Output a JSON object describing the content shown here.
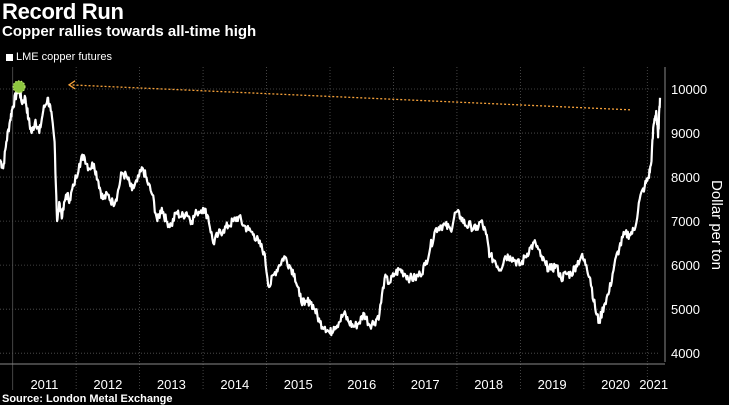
{
  "header": {
    "title": "Record Run",
    "subtitle": "Copper rallies towards all-time high"
  },
  "footer": {
    "source": "Source: London Metal Exchange"
  },
  "colors": {
    "background": "#000000",
    "line": "#ffffff",
    "grid": "#555555",
    "annotation_arrow": "#f7a23a",
    "highlight_marker": "#8dc63f"
  },
  "chart_data": {
    "type": "line",
    "title": "Record Run",
    "subtitle": "Copper rallies towards all-time high",
    "ylabel": "Dollar per ton",
    "xlabel": "",
    "ylim": [
      3800,
      10500
    ],
    "yticks": [
      4000,
      5000,
      6000,
      7000,
      8000,
      9000,
      10000
    ],
    "xlim": [
      2010.8,
      2021.2
    ],
    "xticks": [
      "2011",
      "2012",
      "2013",
      "2014",
      "2015",
      "2016",
      "2017",
      "2018",
      "2019",
      "2020",
      "2021"
    ],
    "grid": true,
    "legend_position": "top-left",
    "annotation": "arrow from latest price back to the 2011 record high",
    "series": [
      {
        "name": "LME copper futures",
        "points": [
          [
            2010.8,
            8400
          ],
          [
            2010.85,
            8200
          ],
          [
            2010.9,
            8800
          ],
          [
            2010.96,
            9300
          ],
          [
            2011.0,
            9600
          ],
          [
            2011.06,
            9900
          ],
          [
            2011.1,
            10050
          ],
          [
            2011.14,
            9700
          ],
          [
            2011.2,
            9800
          ],
          [
            2011.25,
            9300
          ],
          [
            2011.3,
            9000
          ],
          [
            2011.36,
            9300
          ],
          [
            2011.42,
            9000
          ],
          [
            2011.48,
            9500
          ],
          [
            2011.55,
            9800
          ],
          [
            2011.6,
            9500
          ],
          [
            2011.66,
            8800
          ],
          [
            2011.7,
            7000
          ],
          [
            2011.74,
            7400
          ],
          [
            2011.78,
            7100
          ],
          [
            2011.84,
            7600
          ],
          [
            2011.9,
            7500
          ],
          [
            2011.96,
            7800
          ],
          [
            2012.05,
            8300
          ],
          [
            2012.12,
            8500
          ],
          [
            2012.2,
            8200
          ],
          [
            2012.28,
            8300
          ],
          [
            2012.35,
            7900
          ],
          [
            2012.42,
            7500
          ],
          [
            2012.5,
            7600
          ],
          [
            2012.58,
            7400
          ],
          [
            2012.65,
            7600
          ],
          [
            2012.72,
            8100
          ],
          [
            2012.8,
            8000
          ],
          [
            2012.88,
            7700
          ],
          [
            2012.96,
            7900
          ],
          [
            2013.05,
            8200
          ],
          [
            2013.12,
            7900
          ],
          [
            2013.2,
            7600
          ],
          [
            2013.28,
            7000
          ],
          [
            2013.35,
            7300
          ],
          [
            2013.42,
            7000
          ],
          [
            2013.5,
            6900
          ],
          [
            2013.58,
            7200
          ],
          [
            2013.66,
            7100
          ],
          [
            2013.74,
            7200
          ],
          [
            2013.82,
            7000
          ],
          [
            2013.9,
            7200
          ],
          [
            2014.0,
            7300
          ],
          [
            2014.08,
            7100
          ],
          [
            2014.16,
            6500
          ],
          [
            2014.24,
            6700
          ],
          [
            2014.32,
            6800
          ],
          [
            2014.4,
            6900
          ],
          [
            2014.48,
            7000
          ],
          [
            2014.56,
            7100
          ],
          [
            2014.64,
            6900
          ],
          [
            2014.72,
            6800
          ],
          [
            2014.8,
            6700
          ],
          [
            2014.88,
            6500
          ],
          [
            2014.96,
            6300
          ],
          [
            2015.04,
            5500
          ],
          [
            2015.12,
            5800
          ],
          [
            2015.2,
            6000
          ],
          [
            2015.28,
            6200
          ],
          [
            2015.36,
            6000
          ],
          [
            2015.44,
            5800
          ],
          [
            2015.52,
            5300
          ],
          [
            2015.6,
            5100
          ],
          [
            2015.68,
            5200
          ],
          [
            2015.76,
            5000
          ],
          [
            2015.84,
            4700
          ],
          [
            2015.92,
            4600
          ],
          [
            2016.0,
            4450
          ],
          [
            2016.06,
            4600
          ],
          [
            2016.14,
            4700
          ],
          [
            2016.22,
            4900
          ],
          [
            2016.3,
            4700
          ],
          [
            2016.38,
            4600
          ],
          [
            2016.46,
            4700
          ],
          [
            2016.54,
            4900
          ],
          [
            2016.62,
            4650
          ],
          [
            2016.7,
            4700
          ],
          [
            2016.78,
            4900
          ],
          [
            2016.86,
            5700
          ],
          [
            2016.94,
            5600
          ],
          [
            2017.02,
            5800
          ],
          [
            2017.1,
            5900
          ],
          [
            2017.18,
            5800
          ],
          [
            2017.26,
            5700
          ],
          [
            2017.34,
            5700
          ],
          [
            2017.42,
            5800
          ],
          [
            2017.5,
            6000
          ],
          [
            2017.58,
            6400
          ],
          [
            2017.66,
            6800
          ],
          [
            2017.74,
            6900
          ],
          [
            2017.82,
            6900
          ],
          [
            2017.9,
            6800
          ],
          [
            2017.98,
            7200
          ],
          [
            2018.06,
            7100
          ],
          [
            2018.14,
            6900
          ],
          [
            2018.22,
            6900
          ],
          [
            2018.3,
            6800
          ],
          [
            2018.38,
            7000
          ],
          [
            2018.46,
            6700
          ],
          [
            2018.52,
            6200
          ],
          [
            2018.6,
            6100
          ],
          [
            2018.68,
            5900
          ],
          [
            2018.76,
            6200
          ],
          [
            2018.84,
            6200
          ],
          [
            2018.92,
            6100
          ],
          [
            2019.0,
            6000
          ],
          [
            2019.08,
            6200
          ],
          [
            2019.16,
            6400
          ],
          [
            2019.24,
            6500
          ],
          [
            2019.32,
            6200
          ],
          [
            2019.4,
            6000
          ],
          [
            2019.48,
            5900
          ],
          [
            2019.56,
            6000
          ],
          [
            2019.64,
            5700
          ],
          [
            2019.72,
            5800
          ],
          [
            2019.8,
            5800
          ],
          [
            2019.88,
            6000
          ],
          [
            2019.96,
            6200
          ],
          [
            2020.04,
            6000
          ],
          [
            2020.1,
            5700
          ],
          [
            2020.18,
            5000
          ],
          [
            2020.24,
            4700
          ],
          [
            2020.32,
            5100
          ],
          [
            2020.4,
            5400
          ],
          [
            2020.48,
            6000
          ],
          [
            2020.56,
            6400
          ],
          [
            2020.64,
            6700
          ],
          [
            2020.72,
            6700
          ],
          [
            2020.8,
            6800
          ],
          [
            2020.88,
            7500
          ],
          [
            2020.96,
            7800
          ],
          [
            2021.02,
            8000
          ],
          [
            2021.06,
            8300
          ],
          [
            2021.1,
            9200
          ],
          [
            2021.14,
            9500
          ],
          [
            2021.17,
            8900
          ],
          [
            2021.2,
            9800
          ]
        ]
      }
    ]
  }
}
